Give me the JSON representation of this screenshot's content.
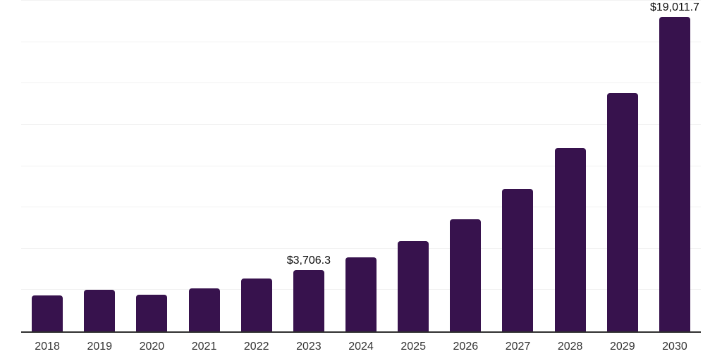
{
  "chart": {
    "background_color": "#ffffff",
    "bar_color": "#37124d",
    "axis_line_color": "#2e2e2e",
    "gridline_color": "#f2f2f2",
    "x_label_color": "#333333",
    "data_label_color": "#0d0d0d"
  },
  "chart_data": {
    "type": "bar",
    "title": "",
    "xlabel": "",
    "ylabel": "",
    "categories": [
      "2018",
      "2019",
      "2020",
      "2021",
      "2022",
      "2023",
      "2024",
      "2025",
      "2026",
      "2027",
      "2028",
      "2029",
      "2030"
    ],
    "values": [
      2190,
      2500,
      2200,
      2590,
      3190,
      3706.3,
      4470,
      5470,
      6800,
      8620,
      11080,
      14410,
      19011.7
    ],
    "data_labels": [
      "",
      "",
      "",
      "",
      "",
      "$3,706.3",
      "",
      "",
      "",
      "",
      "",
      "",
      "$19,011.7"
    ],
    "ylim": [
      0,
      20000
    ],
    "gridline_interval": 2500,
    "grid": true,
    "legend": false,
    "y_axis_tick_labels_visible": false
  }
}
